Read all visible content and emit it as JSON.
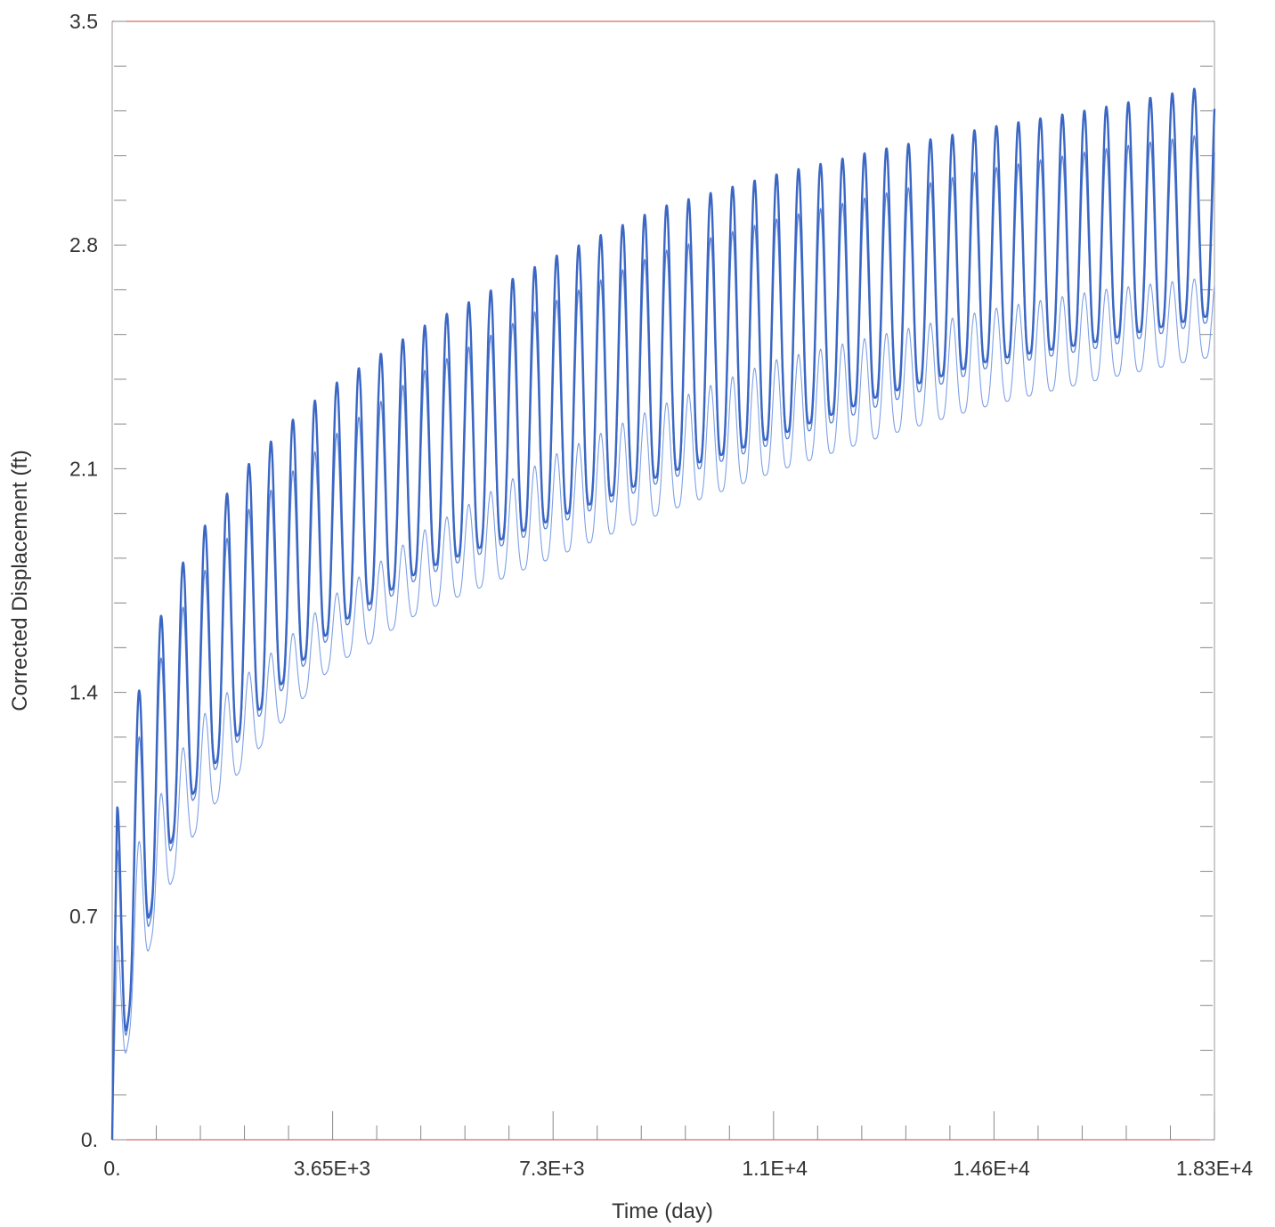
{
  "chart_data": {
    "type": "line",
    "title": "",
    "xlabel": "Time (day)",
    "ylabel": "Corrected Displacement (ft)",
    "xlim": [
      0,
      18300
    ],
    "ylim": [
      0,
      3.5
    ],
    "x_ticks": [
      {
        "value": 0,
        "label": "0."
      },
      {
        "value": 3650,
        "label": "3.65E+3"
      },
      {
        "value": 7300,
        "label": "7.3E+3"
      },
      {
        "value": 11000,
        "label": "1.1E+4"
      },
      {
        "value": 14600,
        "label": "1.46E+4"
      },
      {
        "value": 18300,
        "label": "1.83E+4"
      }
    ],
    "y_ticks": [
      {
        "value": 0,
        "label": "0."
      },
      {
        "value": 0.7,
        "label": "0.7"
      },
      {
        "value": 1.4,
        "label": "1.4"
      },
      {
        "value": 2.1,
        "label": "2.1"
      },
      {
        "value": 2.8,
        "label": "2.8"
      },
      {
        "value": 3.5,
        "label": "3.5"
      }
    ],
    "grid": false,
    "legend": "none",
    "cycle_period_days": 365,
    "series": [
      {
        "color": "#3a66c4",
        "line_width": 2.4,
        "envelope_x": [
          0,
          365,
          730,
          1095,
          1460,
          2190,
          2920,
          3650,
          5110,
          7300,
          9125,
          11000,
          12775,
          14600,
          16425,
          18250
        ],
        "envelope_max": [
          0.95,
          1.35,
          1.6,
          1.78,
          1.9,
          2.1,
          2.24,
          2.36,
          2.54,
          2.76,
          2.92,
          3.02,
          3.1,
          3.17,
          3.23,
          3.3
        ],
        "envelope_min": [
          0.0,
          0.52,
          0.78,
          1.0,
          1.12,
          1.29,
          1.45,
          1.6,
          1.78,
          1.94,
          2.08,
          2.2,
          2.33,
          2.44,
          2.5,
          2.58
        ]
      },
      {
        "color": "#5b84d6",
        "line_width": 1.3,
        "envelope_x": [
          0,
          365,
          730,
          1095,
          1460,
          2190,
          2920,
          3650,
          5110,
          7300,
          9125,
          11000,
          12775,
          14600,
          16425,
          18250
        ],
        "envelope_max": [
          0.82,
          1.2,
          1.47,
          1.64,
          1.76,
          1.96,
          2.08,
          2.2,
          2.4,
          2.62,
          2.78,
          2.88,
          2.96,
          3.04,
          3.1,
          3.15
        ],
        "envelope_min": [
          0.0,
          0.5,
          0.75,
          0.98,
          1.1,
          1.27,
          1.43,
          1.58,
          1.76,
          1.92,
          2.06,
          2.18,
          2.3,
          2.42,
          2.48,
          2.56
        ]
      },
      {
        "color": "#7ea0e6",
        "line_width": 1.1,
        "envelope_x": [
          0,
          365,
          730,
          1095,
          1460,
          2190,
          2920,
          3650,
          5110,
          7300,
          9125,
          11000,
          12775,
          14600,
          16425,
          18250
        ],
        "envelope_max": [
          0.52,
          0.9,
          1.05,
          1.2,
          1.32,
          1.45,
          1.57,
          1.7,
          1.9,
          2.14,
          2.3,
          2.44,
          2.52,
          2.6,
          2.66,
          2.7
        ],
        "envelope_min": [
          0.0,
          0.42,
          0.68,
          0.86,
          0.99,
          1.17,
          1.33,
          1.48,
          1.65,
          1.82,
          1.96,
          2.09,
          2.2,
          2.3,
          2.38,
          2.45
        ]
      }
    ]
  }
}
